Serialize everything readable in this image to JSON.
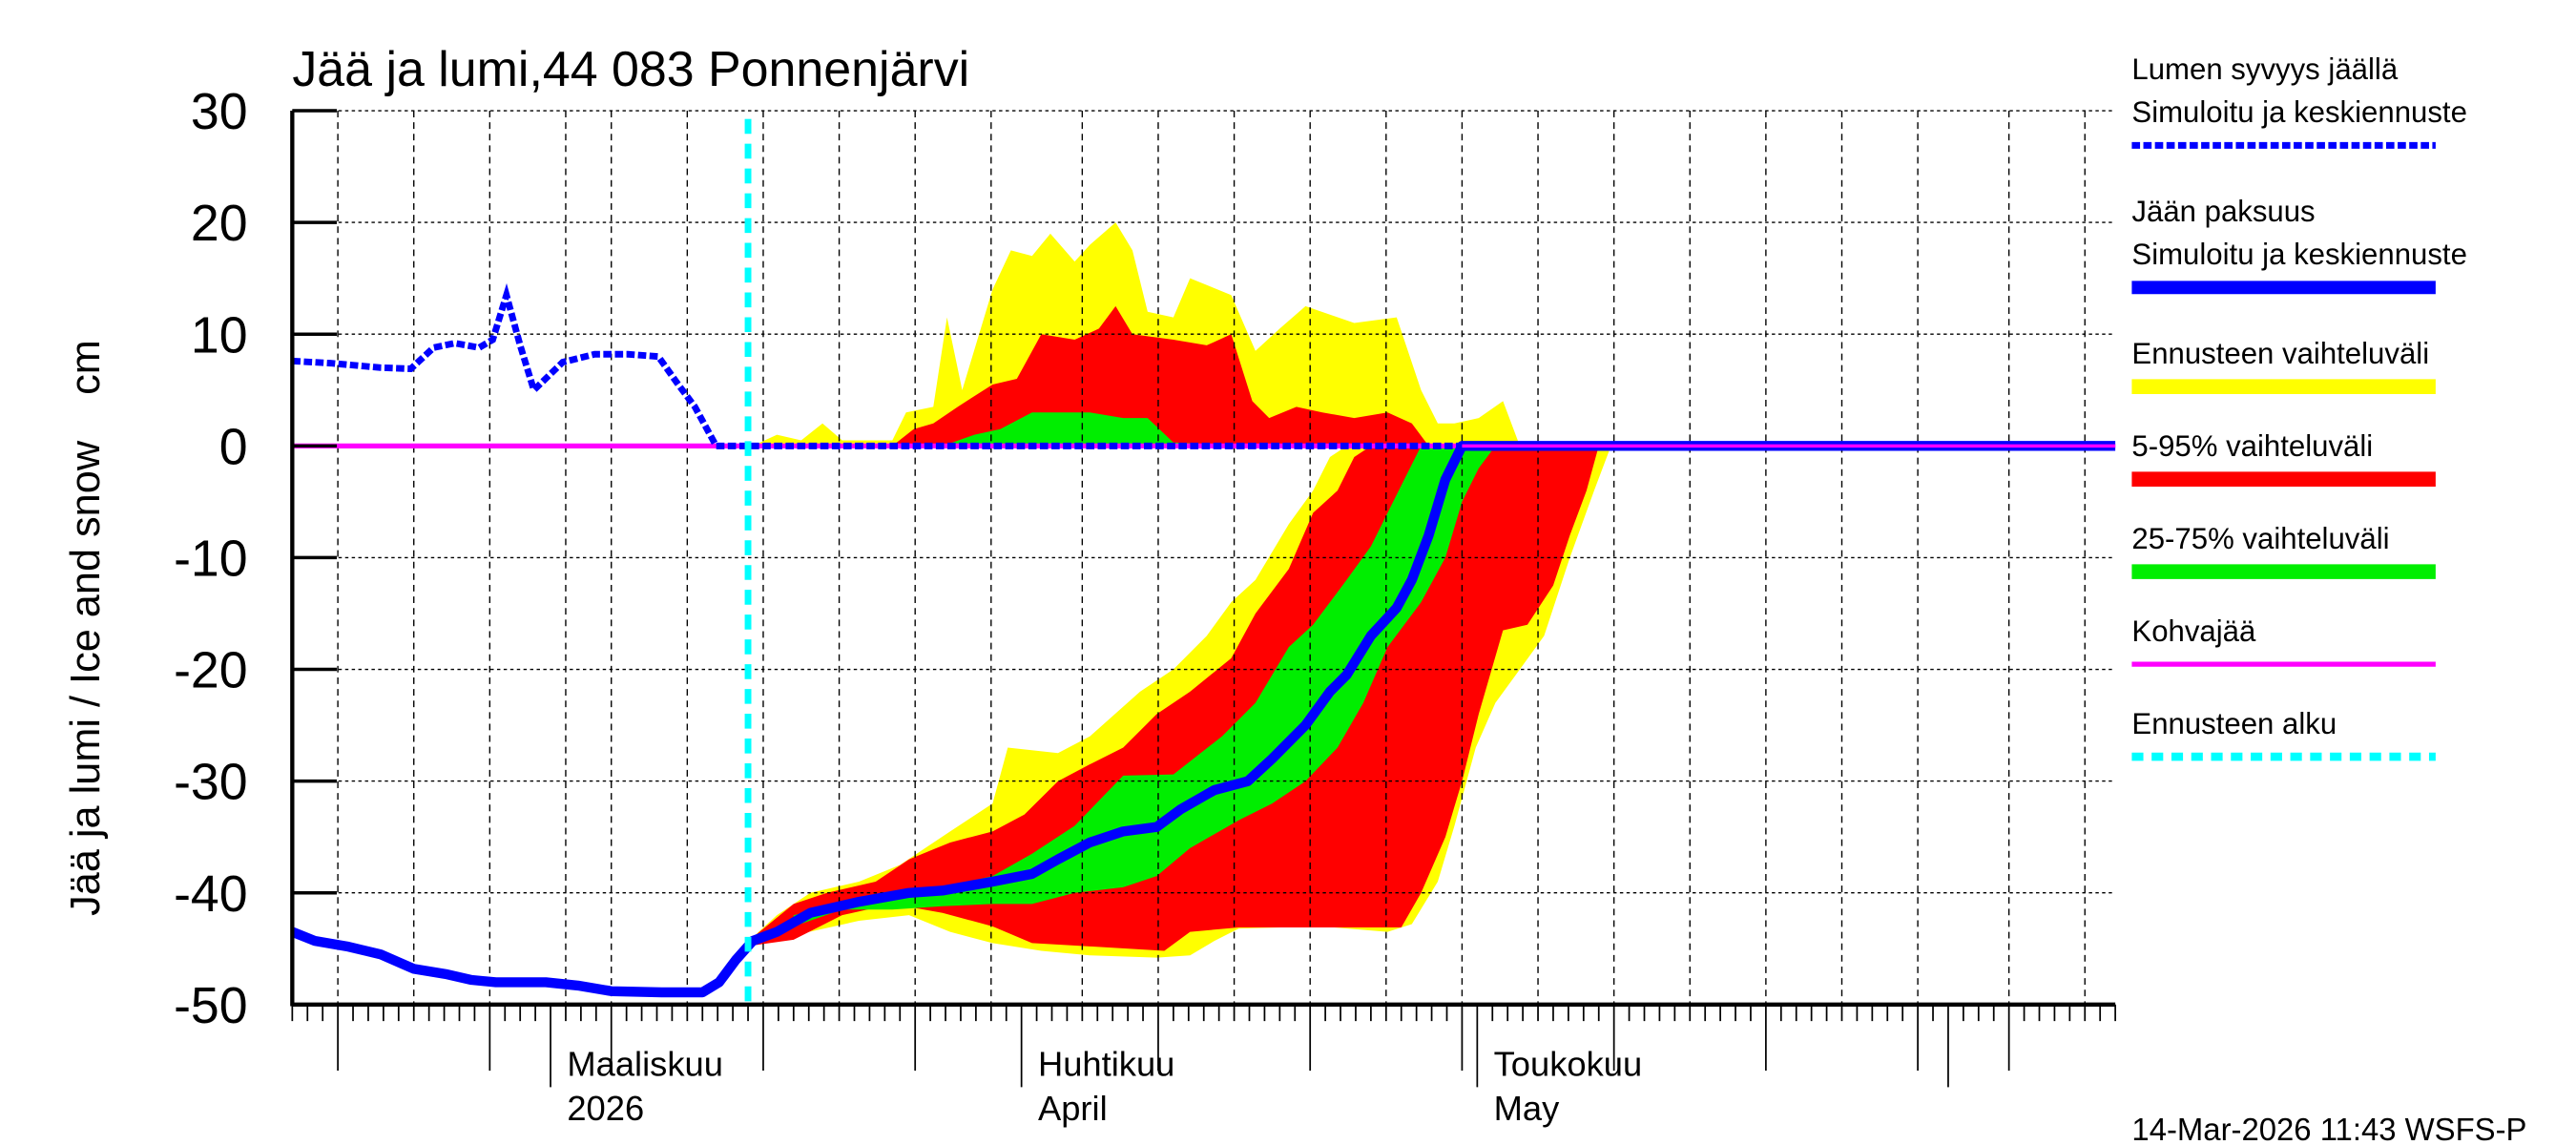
{
  "chart_data": {
    "type": "area",
    "title": "Jää ja lumi,44 083 Ponnenjärvi",
    "ylabel": "Jää ja lumi / Ice and snow    cm",
    "ylim": [
      -50,
      30
    ],
    "yticks": [
      30,
      20,
      10,
      0,
      -10,
      -20,
      -30,
      -40,
      -50
    ],
    "x_unit": "days since 1 March 2026",
    "xlim": [
      -17,
      103
    ],
    "x_month_labels": [
      {
        "day": 0,
        "line1": "Maaliskuu",
        "line2": "2026"
      },
      {
        "day": 31,
        "line1": "Huhtikuu",
        "line2": "April"
      },
      {
        "day": 61,
        "line1": "Toukokuu",
        "line2": "May"
      }
    ],
    "forecast_start_day": 13,
    "grid": true,
    "legend_position": "right",
    "legend": [
      {
        "line1": "Lumen syvyys jäällä",
        "line2": "Simuloitu ja keskiennuste",
        "color": "#0000ff",
        "style": "dashed"
      },
      {
        "line1": "Jään paksuus",
        "line2": "Simuloitu ja keskiennuste",
        "color": "#0000ff",
        "style": "solid"
      },
      {
        "line1": "Ennusteen vaihteluväli",
        "color": "#ffff00",
        "style": "band"
      },
      {
        "line1": "5-95% vaihteluväli",
        "color": "#ff0000",
        "style": "band"
      },
      {
        "line1": "25-75% vaihteluväli",
        "color": "#00ee00",
        "style": "band"
      },
      {
        "line1": "Kohvajää",
        "color": "#ff00ff",
        "style": "solid"
      },
      {
        "line1": "Ennusteen alku",
        "color": "#00ffff",
        "style": "dotted"
      }
    ],
    "series": {
      "snow_depth": [
        [
          -17,
          7.6
        ],
        [
          -14.5,
          7.4
        ],
        [
          -11.2,
          7.0
        ],
        [
          -9.2,
          6.9
        ],
        [
          -7.7,
          8.8
        ],
        [
          -6.3,
          9.2
        ],
        [
          -4.7,
          8.8
        ],
        [
          -3.8,
          9.5
        ],
        [
          -2.9,
          13.5
        ],
        [
          -2,
          9
        ],
        [
          -1.1,
          5
        ],
        [
          0.8,
          7.5
        ],
        [
          2.9,
          8.2
        ],
        [
          5.1,
          8.2
        ],
        [
          7.1,
          8.0
        ],
        [
          8.4,
          5.5
        ],
        [
          9.5,
          3.5
        ],
        [
          10.9,
          0
        ],
        [
          60,
          0
        ]
      ],
      "ice_thickness": [
        [
          -17,
          -43.5
        ],
        [
          -15.5,
          -44.3
        ],
        [
          -13.4,
          -44.8
        ],
        [
          -11.2,
          -45.5
        ],
        [
          -9,
          -46.8
        ],
        [
          -6.8,
          -47.3
        ],
        [
          -5.2,
          -47.8
        ],
        [
          -3.6,
          -48.0
        ],
        [
          -0.3,
          -48.0
        ],
        [
          1.8,
          -48.3
        ],
        [
          4,
          -48.8
        ],
        [
          7.3,
          -48.9
        ],
        [
          10,
          -48.9
        ],
        [
          11.1,
          -48.0
        ],
        [
          12.2,
          -46
        ],
        [
          13.3,
          -44.3
        ],
        [
          14.9,
          -43.5
        ],
        [
          17.1,
          -41.8
        ],
        [
          20.3,
          -40.8
        ],
        [
          23.6,
          -40
        ],
        [
          25.8,
          -39.8
        ],
        [
          29.1,
          -39
        ],
        [
          31.7,
          -38.3
        ],
        [
          33.4,
          -37
        ],
        [
          35.5,
          -35.5
        ],
        [
          37.7,
          -34.5
        ],
        [
          39.9,
          -34.1
        ],
        [
          41.5,
          -32.5
        ],
        [
          43.7,
          -30.8
        ],
        [
          45.9,
          -30
        ],
        [
          47.5,
          -28
        ],
        [
          49.7,
          -25
        ],
        [
          51.3,
          -22
        ],
        [
          52.4,
          -20.5
        ],
        [
          54,
          -17
        ],
        [
          55.7,
          -14.5
        ],
        [
          56.7,
          -12
        ],
        [
          57.8,
          -8
        ],
        [
          58.9,
          -3
        ],
        [
          60,
          0
        ],
        [
          103,
          0
        ]
      ],
      "slush_ice": [
        [
          -17,
          0
        ],
        [
          103,
          0
        ]
      ],
      "bands": [
        {
          "name": "ensemble-range-ice",
          "color": "#ffff00",
          "upper": [
            [
              13.3,
              -44
            ],
            [
              14.9,
              -42
            ],
            [
              17.1,
              -40
            ],
            [
              20.3,
              -39
            ],
            [
              23,
              -37.5
            ],
            [
              26.3,
              -34.5
            ],
            [
              29.1,
              -32
            ],
            [
              30.1,
              -27
            ],
            [
              33.4,
              -27.5
            ],
            [
              35.5,
              -26
            ],
            [
              38.8,
              -22
            ],
            [
              41,
              -20
            ],
            [
              43.2,
              -17
            ],
            [
              44.8,
              -14
            ],
            [
              46.4,
              -12
            ],
            [
              48.6,
              -7
            ],
            [
              50.2,
              -4
            ],
            [
              51.3,
              -1
            ],
            [
              52.4,
              0
            ]
          ],
          "lower": [
            [
              13.3,
              -44.5
            ],
            [
              16,
              -43.8
            ],
            [
              20.3,
              -42.5
            ],
            [
              23.6,
              -42
            ],
            [
              26.3,
              -43.5
            ],
            [
              29.1,
              -44.5
            ],
            [
              32.3,
              -45.2
            ],
            [
              35.5,
              -45.6
            ],
            [
              39.9,
              -45.8
            ],
            [
              42.1,
              -45.6
            ],
            [
              43.7,
              -44.3
            ],
            [
              45.3,
              -43.2
            ],
            [
              50.8,
              -43
            ],
            [
              55.1,
              -43.5
            ],
            [
              56.7,
              -42.8
            ],
            [
              58.4,
              -39
            ],
            [
              59.5,
              -34
            ],
            [
              60.9,
              -27
            ],
            [
              62.2,
              -23
            ],
            [
              63.8,
              -20
            ],
            [
              65.4,
              -17
            ],
            [
              67.1,
              -10
            ],
            [
              68.7,
              -4
            ],
            [
              69.8,
              0
            ]
          ]
        },
        {
          "name": "p5-95-ice",
          "color": "#ff0000",
          "upper": [
            [
              13.3,
              -44
            ],
            [
              16,
              -41
            ],
            [
              18.2,
              -40
            ],
            [
              21.4,
              -39
            ],
            [
              23.6,
              -37
            ],
            [
              26.3,
              -35.5
            ],
            [
              29.1,
              -34.5
            ],
            [
              31.2,
              -33
            ],
            [
              33.4,
              -30
            ],
            [
              35.5,
              -28.5
            ],
            [
              37.7,
              -27
            ],
            [
              39.9,
              -24
            ],
            [
              42.1,
              -22
            ],
            [
              44.8,
              -19
            ],
            [
              46.4,
              -15
            ],
            [
              48.6,
              -11
            ],
            [
              50.2,
              -6
            ],
            [
              51.8,
              -4
            ],
            [
              52.9,
              -1
            ],
            [
              54,
              0
            ]
          ],
          "lower": [
            [
              13.3,
              -44.7
            ],
            [
              16,
              -44.2
            ],
            [
              19.2,
              -42
            ],
            [
              22.5,
              -41
            ],
            [
              25.8,
              -41.8
            ],
            [
              29.1,
              -43
            ],
            [
              31.7,
              -44.5
            ],
            [
              35.5,
              -44.8
            ],
            [
              40.4,
              -45.2
            ],
            [
              42.1,
              -43.5
            ],
            [
              45.3,
              -43.1
            ],
            [
              50.8,
              -43.1
            ],
            [
              56,
              -43.1
            ],
            [
              57.3,
              -40
            ],
            [
              58.9,
              -35
            ],
            [
              60,
              -30
            ],
            [
              61.1,
              -24
            ],
            [
              62.7,
              -16.5
            ],
            [
              64.3,
              -16
            ],
            [
              66,
              -12.5
            ],
            [
              67.1,
              -8
            ],
            [
              68.2,
              -4
            ],
            [
              69,
              0
            ]
          ]
        },
        {
          "name": "p25-75-ice",
          "color": "#00ee00",
          "upper": [
            [
              16,
              -42
            ],
            [
              19.2,
              -41
            ],
            [
              22.5,
              -40.5
            ],
            [
              25.8,
              -39.5
            ],
            [
              29.1,
              -38.5
            ],
            [
              31.7,
              -36.5
            ],
            [
              34.5,
              -34
            ],
            [
              37.7,
              -29.5
            ],
            [
              41,
              -29.4
            ],
            [
              44.2,
              -26
            ],
            [
              46.4,
              -23
            ],
            [
              48.6,
              -18
            ],
            [
              50.2,
              -16
            ],
            [
              52.4,
              -12
            ],
            [
              54,
              -9
            ],
            [
              55.1,
              -6
            ],
            [
              56.2,
              -3
            ],
            [
              57.3,
              0
            ]
          ],
          "lower": [
            [
              16,
              -43
            ],
            [
              19.2,
              -41.5
            ],
            [
              22.5,
              -41.5
            ],
            [
              25.8,
              -41.2
            ],
            [
              29.1,
              -41
            ],
            [
              31.7,
              -41
            ],
            [
              34.5,
              -40
            ],
            [
              37.7,
              -39.5
            ],
            [
              39.9,
              -38.5
            ],
            [
              42.1,
              -36
            ],
            [
              45.3,
              -33.5
            ],
            [
              47.5,
              -32
            ],
            [
              49.7,
              -30
            ],
            [
              51.8,
              -27
            ],
            [
              53.5,
              -23
            ],
            [
              55.1,
              -18
            ],
            [
              57.3,
              -14
            ],
            [
              58.9,
              -10
            ],
            [
              60,
              -5
            ],
            [
              61.1,
              -2
            ],
            [
              62.2,
              0
            ]
          ]
        },
        {
          "name": "ensemble-range-snow",
          "color": "#ffff00",
          "upper": [
            [
              13.3,
              0
            ],
            [
              14.9,
              1
            ],
            [
              16.5,
              0.5
            ],
            [
              17.9,
              2
            ],
            [
              19.2,
              0.5
            ],
            [
              22.5,
              0.5
            ],
            [
              23.4,
              3
            ],
            [
              25.2,
              3.5
            ],
            [
              26.1,
              11.5
            ],
            [
              27.1,
              5
            ],
            [
              29.1,
              14
            ],
            [
              30.3,
              17.5
            ],
            [
              31.7,
              17
            ],
            [
              32.9,
              19
            ],
            [
              34.5,
              16.5
            ],
            [
              35.5,
              18
            ],
            [
              37.2,
              20
            ],
            [
              38.3,
              17.5
            ],
            [
              39.3,
              12
            ],
            [
              41,
              11.5
            ],
            [
              42.1,
              15
            ],
            [
              44.8,
              13.5
            ],
            [
              46.4,
              8.5
            ],
            [
              48,
              10.5
            ],
            [
              49.7,
              12.5
            ],
            [
              52.9,
              11
            ],
            [
              55.7,
              11.5
            ],
            [
              57.3,
              5
            ],
            [
              58.4,
              2
            ],
            [
              59.5,
              2
            ],
            [
              61.1,
              2.5
            ],
            [
              62.7,
              4
            ],
            [
              63.8,
              0
            ]
          ],
          "lower": [
            [
              13.3,
              0
            ],
            [
              63.8,
              0
            ]
          ]
        },
        {
          "name": "p5-95-snow",
          "color": "#ff0000",
          "upper": [
            [
              22.5,
              0
            ],
            [
              23.9,
              1.5
            ],
            [
              25.2,
              2
            ],
            [
              26.8,
              3.5
            ],
            [
              29.1,
              5.5
            ],
            [
              30.7,
              6
            ],
            [
              32.3,
              10
            ],
            [
              34.5,
              9.5
            ],
            [
              36.1,
              10.5
            ],
            [
              37.2,
              12.5
            ],
            [
              38.3,
              10
            ],
            [
              41,
              9.5
            ],
            [
              43.2,
              9
            ],
            [
              44.8,
              10
            ],
            [
              46.2,
              4
            ],
            [
              47.3,
              2.5
            ],
            [
              49.1,
              3.5
            ],
            [
              50.8,
              3
            ],
            [
              52.9,
              2.5
            ],
            [
              55.1,
              3
            ],
            [
              56.7,
              2
            ],
            [
              57.8,
              0
            ]
          ],
          "lower": [
            [
              22.5,
              0
            ],
            [
              57.8,
              0
            ]
          ]
        },
        {
          "name": "p25-75-snow",
          "color": "#00ee00",
          "upper": [
            [
              25.8,
              0
            ],
            [
              27.9,
              1
            ],
            [
              29.6,
              1.5
            ],
            [
              31.7,
              3
            ],
            [
              35.5,
              3
            ],
            [
              37.7,
              2.5
            ],
            [
              39.3,
              2.5
            ],
            [
              41,
              0.3
            ],
            [
              46.4,
              0
            ]
          ],
          "lower": [
            [
              25.8,
              0
            ],
            [
              46.4,
              0
            ]
          ]
        }
      ]
    }
  },
  "footer": {
    "timestamp": "14-Mar-2026 11:43 WSFS-P"
  }
}
